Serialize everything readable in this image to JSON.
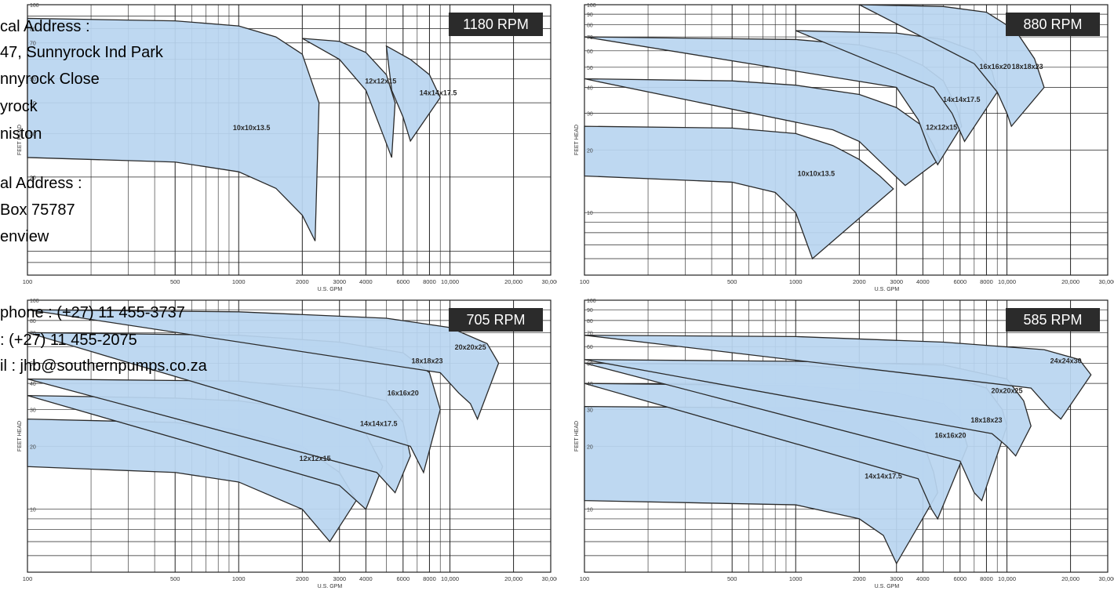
{
  "charts_meta": {
    "fill_color": "#b9d5f0",
    "line_color": "#2a2a2a",
    "grid_color": "#222222",
    "badge_color": "#2b2b2b"
  },
  "chart_data": [
    {
      "type": "area",
      "title": "1180 RPM",
      "xlabel": "U.S. GPM",
      "ylabel": "FEET HEAD",
      "x_scale": "log",
      "y_scale": "log",
      "xlim": [
        100,
        30000
      ],
      "ylim": [
        8,
        100
      ],
      "x_ticks": [
        100,
        500,
        1000,
        2000,
        3000,
        4000,
        6000,
        8000,
        10000,
        20000,
        30000
      ],
      "x_tick_labels": [
        "100",
        "500",
        "1000",
        "2000",
        "3000",
        "4000",
        "6000",
        "8000",
        "10,000",
        "20,000",
        "30,000"
      ],
      "y_ticks": [
        20,
        30,
        40,
        50,
        70,
        80,
        100
      ],
      "y_tick_labels": [
        "20",
        "30",
        "40",
        "50",
        "70",
        "80",
        "100"
      ],
      "grid": true,
      "series": [
        {
          "name": "10x10x13.5",
          "label_at": [
            1150,
            31
          ],
          "top": [
            [
              100,
              88
            ],
            [
              500,
              86
            ],
            [
              1000,
              82
            ],
            [
              1500,
              74
            ],
            [
              2000,
              63
            ],
            [
              2400,
              40
            ]
          ],
          "bottom": [
            [
              100,
              24
            ],
            [
              500,
              23
            ],
            [
              1000,
              21
            ],
            [
              1500,
              18
            ],
            [
              2000,
              14
            ],
            [
              2300,
              11
            ]
          ]
        },
        {
          "name": "12x12x15",
          "label_at": [
            4700,
            48
          ],
          "top": [
            [
              2000,
              73
            ],
            [
              3000,
              71
            ],
            [
              4000,
              64
            ],
            [
              5000,
              52
            ],
            [
              5500,
              40
            ]
          ],
          "bottom": [
            [
              3000,
              60
            ],
            [
              4000,
              45
            ],
            [
              4800,
              30
            ],
            [
              5300,
              24
            ]
          ]
        },
        {
          "name": "14x14x17.5",
          "label_at": [
            8800,
            43
          ],
          "top": [
            [
              5000,
              68
            ],
            [
              6500,
              60
            ],
            [
              8000,
              52
            ],
            [
              9000,
              42
            ]
          ],
          "bottom": [
            [
              5300,
              45
            ],
            [
              6000,
              35
            ],
            [
              6500,
              28
            ]
          ]
        }
      ]
    },
    {
      "type": "area",
      "title": "880 RPM",
      "xlabel": "U.S. GPM",
      "ylabel": "FEET HEAD",
      "x_scale": "log",
      "y_scale": "log",
      "xlim": [
        100,
        30000
      ],
      "ylim": [
        5,
        100
      ],
      "x_ticks": [
        100,
        500,
        1000,
        2000,
        3000,
        4000,
        6000,
        8000,
        10000,
        20000,
        30000
      ],
      "x_tick_labels": [
        "100",
        "500",
        "1000",
        "2000",
        "3000",
        "4000",
        "6000",
        "8000",
        "10,000",
        "20,000",
        "30,000"
      ],
      "y_ticks": [
        10,
        20,
        30,
        40,
        50,
        60,
        70,
        80,
        90,
        100
      ],
      "y_tick_labels": [
        "10",
        "20",
        "30",
        "40",
        "50",
        "60",
        "70",
        "80",
        "90",
        "100"
      ],
      "grid": true,
      "series": [
        {
          "name": "10x10x13.5",
          "label_at": [
            1250,
            15
          ],
          "top": [
            [
              100,
              26
            ],
            [
              500,
              25.5
            ],
            [
              1000,
              24
            ],
            [
              1500,
              21
            ],
            [
              2000,
              18
            ],
            [
              2500,
              15
            ],
            [
              2900,
              13
            ]
          ],
          "bottom": [
            [
              100,
              15
            ],
            [
              500,
              14
            ],
            [
              800,
              12.5
            ],
            [
              1000,
              10
            ],
            [
              1200,
              6
            ]
          ]
        },
        {
          "name": "12x12x15",
          "label_at": [
            4900,
            25
          ],
          "top": [
            [
              100,
              44
            ],
            [
              500,
              43
            ],
            [
              1000,
              41
            ],
            [
              2000,
              37
            ],
            [
              3000,
              32
            ],
            [
              4000,
              26
            ],
            [
              4500,
              21
            ],
            [
              4800,
              18
            ]
          ],
          "bottom": [
            [
              1500,
              25
            ],
            [
              2000,
              22
            ],
            [
              2600,
              17
            ],
            [
              3300,
              13.5
            ]
          ]
        },
        {
          "name": "14x14x17.5",
          "label_at": [
            6100,
            34
          ],
          "top": [
            [
              100,
              70
            ],
            [
              1000,
              68
            ],
            [
              2000,
              64
            ],
            [
              3000,
              58
            ],
            [
              4000,
              51
            ],
            [
              5000,
              43
            ],
            [
              5800,
              32
            ],
            [
              6100,
              26
            ]
          ],
          "bottom": [
            [
              3000,
              40
            ],
            [
              3800,
              28
            ],
            [
              4300,
              20
            ],
            [
              4700,
              17
            ]
          ]
        },
        {
          "name": "16x16x20",
          "label_at": [
            8800,
            49
          ],
          "top": [
            [
              1000,
              75
            ],
            [
              3000,
              73
            ],
            [
              5000,
              68
            ],
            [
              7000,
              60
            ],
            [
              8500,
              48
            ],
            [
              9000,
              38
            ]
          ],
          "bottom": [
            [
              4500,
              40
            ],
            [
              5500,
              30
            ],
            [
              6300,
              22
            ]
          ]
        },
        {
          "name": "18x18x23",
          "label_at": [
            12500,
            49
          ],
          "top": [
            [
              2000,
              100
            ],
            [
              5000,
              98
            ],
            [
              8000,
              92
            ],
            [
              11000,
              75
            ],
            [
              13500,
              55
            ],
            [
              15000,
              40
            ]
          ],
          "bottom": [
            [
              7000,
              52
            ],
            [
              9000,
              38
            ],
            [
              10000,
              30
            ],
            [
              10500,
              26
            ]
          ]
        }
      ]
    },
    {
      "type": "area",
      "title": "705 RPM",
      "xlabel": "U.S. GPM",
      "ylabel": "FEET HEAD",
      "x_scale": "log",
      "y_scale": "log",
      "xlim": [
        100,
        30000
      ],
      "ylim": [
        5,
        100
      ],
      "x_ticks": [
        100,
        500,
        1000,
        2000,
        3000,
        4000,
        6000,
        8000,
        10000,
        20000,
        30000
      ],
      "x_tick_labels": [
        "100",
        "500",
        "1000",
        "2000",
        "3000",
        "4000",
        "6000",
        "8000",
        "10,000",
        "20,000",
        "30,000"
      ],
      "y_ticks": [
        10,
        20,
        30,
        40,
        50,
        70,
        80,
        100
      ],
      "y_tick_labels": [
        "10",
        "20",
        "30",
        "40",
        "50",
        "70",
        "80",
        "100"
      ],
      "grid": true,
      "series": [
        {
          "name": "12x12x15",
          "label_at": [
            2300,
            17
          ],
          "top": [
            [
              100,
              27
            ],
            [
              500,
              26
            ],
            [
              1000,
              24
            ],
            [
              2000,
              20
            ],
            [
              3000,
              15
            ],
            [
              3600,
              11
            ]
          ],
          "bottom": [
            [
              100,
              16
            ],
            [
              500,
              15
            ],
            [
              1000,
              13.5
            ],
            [
              2000,
              10
            ],
            [
              2700,
              7
            ]
          ]
        },
        {
          "name": "14x14x17.5",
          "label_at": [
            4600,
            25
          ],
          "top": [
            [
              100,
              35
            ],
            [
              500,
              34
            ],
            [
              1000,
              33
            ],
            [
              2000,
              30
            ],
            [
              3000,
              27
            ],
            [
              4000,
              23
            ],
            [
              4800,
              16
            ]
          ],
          "bottom": [
            [
              3000,
              13
            ],
            [
              4000,
              10
            ]
          ]
        },
        {
          "name": "16x16x20",
          "label_at": [
            6000,
            35
          ],
          "top": [
            [
              100,
              42
            ],
            [
              1000,
              41
            ],
            [
              3000,
              37
            ],
            [
              5000,
              33
            ],
            [
              6000,
              26
            ],
            [
              6500,
              18
            ]
          ],
          "bottom": [
            [
              4500,
              15
            ],
            [
              5500,
              12
            ]
          ]
        },
        {
          "name": "18x18x23",
          "label_at": [
            7800,
            50
          ],
          "top": [
            [
              100,
              70
            ],
            [
              1000,
              68
            ],
            [
              3000,
              63
            ],
            [
              6000,
              56
            ],
            [
              8000,
              45
            ],
            [
              9000,
              30
            ]
          ],
          "bottom": [
            [
              6500,
              20
            ],
            [
              7500,
              15
            ]
          ]
        },
        {
          "name": "20x20x25",
          "label_at": [
            12500,
            58
          ],
          "top": [
            [
              100,
              90
            ],
            [
              1000,
              88
            ],
            [
              5000,
              82
            ],
            [
              10000,
              74
            ],
            [
              15000,
              62
            ],
            [
              17000,
              50
            ]
          ],
          "bottom": [
            [
              9000,
              45
            ],
            [
              11000,
              36
            ],
            [
              12500,
              32
            ],
            [
              13500,
              27
            ]
          ]
        }
      ]
    },
    {
      "type": "area",
      "title": "585 RPM",
      "xlabel": "U.S. GPM",
      "ylabel": "FEET HEAD",
      "x_scale": "log",
      "y_scale": "log",
      "xlim": [
        100,
        30000
      ],
      "ylim": [
        5,
        100
      ],
      "x_ticks": [
        100,
        500,
        1000,
        2000,
        3000,
        4000,
        6000,
        8000,
        10000,
        20000,
        30000
      ],
      "x_tick_labels": [
        "100",
        "500",
        "1000",
        "2000",
        "3000",
        "4000",
        "6000",
        "8000",
        "10,000",
        "20,000",
        "30,000"
      ],
      "y_ticks": [
        10,
        20,
        30,
        40,
        50,
        60,
        70,
        80,
        90,
        100
      ],
      "y_tick_labels": [
        "10",
        "20",
        "30",
        "40",
        "50",
        "60",
        "70",
        "80",
        "90",
        "100"
      ],
      "grid": true,
      "series": [
        {
          "name": "14x14x17.5",
          "label_at": [
            2600,
            14
          ],
          "top": [
            [
              100,
              31
            ],
            [
              1000,
              30.5
            ],
            [
              2000,
              29
            ],
            [
              3000,
              26
            ],
            [
              4000,
              21
            ],
            [
              4500,
              15
            ],
            [
              4700,
              12
            ]
          ],
          "bottom": [
            [
              100,
              11
            ],
            [
              1000,
              10.5
            ],
            [
              2000,
              9
            ],
            [
              2600,
              7.5
            ],
            [
              3000,
              5.5
            ]
          ]
        },
        {
          "name": "16x16x20",
          "label_at": [
            5400,
            22
          ],
          "top": [
            [
              100,
              40
            ],
            [
              1000,
              39
            ],
            [
              3000,
              36
            ],
            [
              5000,
              32
            ],
            [
              6000,
              27
            ],
            [
              6500,
              20
            ]
          ],
          "bottom": [
            [
              3800,
              14
            ],
            [
              4400,
              10
            ],
            [
              4700,
              9
            ]
          ]
        },
        {
          "name": "18x18x23",
          "label_at": [
            8000,
            26
          ],
          "top": [
            [
              100,
              50
            ],
            [
              1000,
              49
            ],
            [
              5000,
              44
            ],
            [
              8000,
              38
            ],
            [
              9500,
              30
            ],
            [
              10000,
              25
            ]
          ],
          "bottom": [
            [
              6000,
              17
            ],
            [
              7000,
              12
            ],
            [
              7600,
              11
            ]
          ]
        },
        {
          "name": "20x20x25",
          "label_at": [
            10000,
            36
          ],
          "top": [
            [
              100,
              52
            ],
            [
              1000,
              51
            ],
            [
              5000,
              49
            ],
            [
              10000,
              42
            ],
            [
              12000,
              33
            ],
            [
              13000,
              25
            ]
          ],
          "bottom": [
            [
              8500,
              23
            ],
            [
              10000,
              20
            ],
            [
              11000,
              18
            ]
          ]
        },
        {
          "name": "24x24x30",
          "label_at": [
            19000,
            50
          ],
          "top": [
            [
              100,
              68
            ],
            [
              1000,
              67
            ],
            [
              5000,
              63
            ],
            [
              15000,
              58
            ],
            [
              22000,
              52
            ],
            [
              25000,
              44
            ]
          ],
          "bottom": [
            [
              13000,
              38
            ],
            [
              16000,
              30
            ],
            [
              18000,
              27
            ]
          ]
        }
      ]
    }
  ],
  "address": {
    "physical_label": "cal Address :",
    "physical_line1": "47, Sunnyrock Ind Park",
    "physical_line2": "nnyrock Close",
    "physical_line3": "yrock",
    "physical_line4": "niston",
    "postal_label": "al Address :",
    "postal_line1": "Box 75787",
    "postal_line2": "enview",
    "telephone": "phone : (+27) 11 455-3737",
    "fax": ": (+27) 11 455-2075",
    "email": "il : jhb@southernpumps.co.za"
  }
}
